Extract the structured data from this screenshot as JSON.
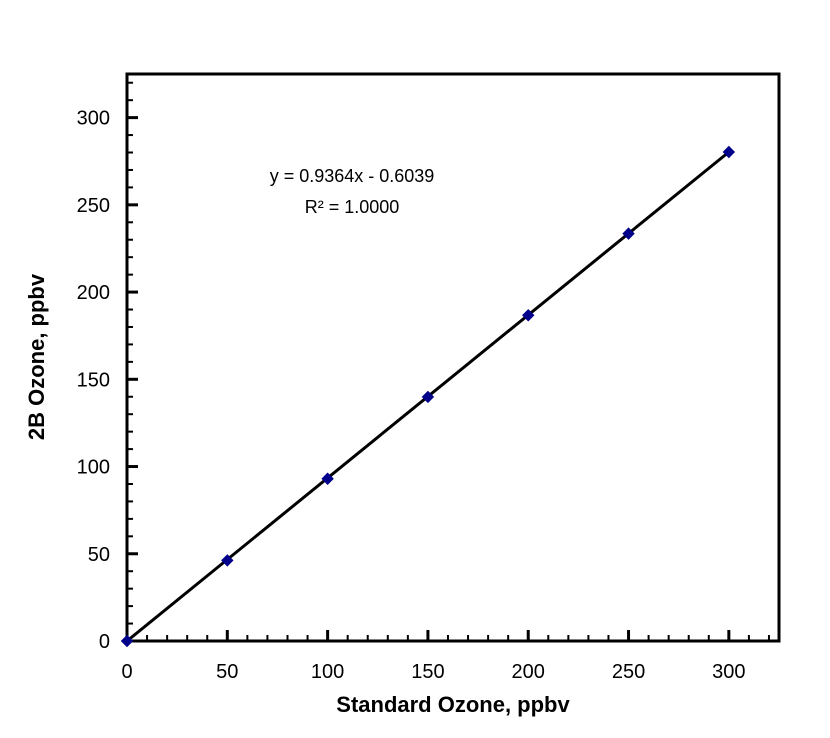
{
  "chart_data": {
    "type": "scatter",
    "title": "",
    "xlabel": "Standard Ozone, ppbv",
    "ylabel": "2B Ozone, ppbv",
    "xlim": [
      0,
      325
    ],
    "ylim": [
      0,
      325
    ],
    "x_major_tick_step": 50,
    "x_minor_tick_step": 10,
    "y_major_tick_step": 50,
    "y_minor_tick_step": 10,
    "x_tick_labels": [
      "0",
      "50",
      "100",
      "150",
      "200",
      "250",
      "300"
    ],
    "y_tick_labels": [
      "0",
      "50",
      "100",
      "150",
      "200",
      "250",
      "300"
    ],
    "x": [
      0,
      50,
      100,
      150,
      200,
      250,
      300
    ],
    "y": [
      0,
      46.2,
      93.0,
      139.9,
      186.7,
      233.5,
      280.3
    ],
    "trendline": {
      "slope": 0.9364,
      "intercept": -0.6039
    },
    "annotation": {
      "equation": "y = 0.9364x - 0.6039",
      "r_squared": "R² = 1.0000"
    },
    "marker": {
      "shape": "diamond",
      "color": "#00008B",
      "size": 11
    },
    "line_color": "#000000",
    "axis_color": "#000000",
    "background": "#FFFFFF",
    "grid": false,
    "legend": "none"
  }
}
